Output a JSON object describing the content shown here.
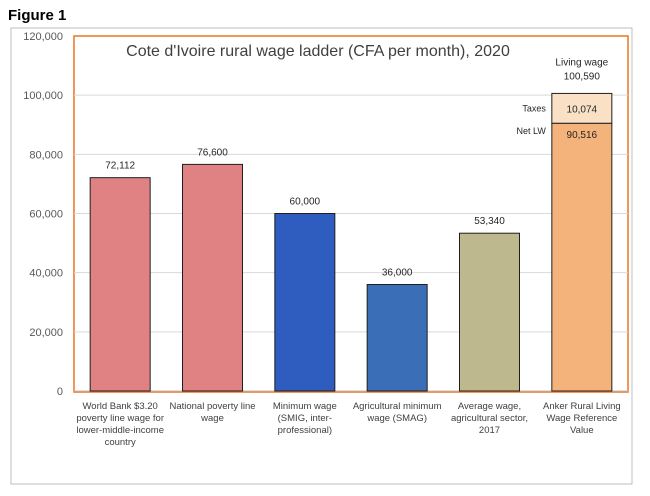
{
  "figure_label": "Figure 1",
  "colors": {
    "frame": "#ED7D31",
    "grid": "#D9D9D9",
    "pink": "#E08283",
    "blue_dark": "#2F5DBF",
    "blue_mid": "#3A6FB8",
    "khaki": "#BDB88E",
    "orange": "#F4B37A",
    "taxes_fill": "#FAE1C6"
  },
  "chart_data": {
    "type": "bar",
    "title": "Cote d'Ivoire rural wage ladder (CFA per month), 2020",
    "ylim": [
      0,
      120000
    ],
    "yticks": [
      0,
      20000,
      40000,
      60000,
      80000,
      100000,
      120000
    ],
    "ytick_labels": [
      "0",
      "20,000",
      "40,000",
      "60,000",
      "80,000",
      "100,000",
      "120,000"
    ],
    "grid": true,
    "categories": [
      "World Bank $3.20 poverty line wage for lower-middle-income country",
      "National poverty line wage",
      "Minimum wage (SMIG, inter-professional)",
      "Agricultural minimum wage (SMAG)",
      "Average wage, agricultural sector, 2017",
      "Anker Rural Living Wage Reference Value"
    ],
    "category_lines": [
      [
        "World Bank $3.20",
        "poverty line wage for",
        "lower-middle-income",
        "country"
      ],
      [
        "National poverty line",
        "wage"
      ],
      [
        "Minimum wage",
        "(SMIG, inter-",
        "professional)"
      ],
      [
        "Agricultural minimum",
        "wage (SMAG)"
      ],
      [
        "Average wage,",
        "agricultural sector,",
        "2017"
      ],
      [
        "Anker Rural Living",
        "Wage Reference",
        "Value"
      ]
    ],
    "values": [
      72112,
      76600,
      60000,
      36000,
      53340,
      90516
    ],
    "value_labels": [
      "72,112",
      "76,600",
      "60,000",
      "36,000",
      "53,340",
      "90,516"
    ],
    "bar_colors": [
      "pink",
      "pink",
      "blue_dark",
      "blue_mid",
      "khaki",
      "orange"
    ],
    "stacked_top": {
      "category_index": 5,
      "value": 10074,
      "value_label": "10,074",
      "segment_label": "Taxes",
      "base_label": "Net LW",
      "total_label_line1": "Living wage",
      "total_label_line2": "100,590"
    }
  }
}
